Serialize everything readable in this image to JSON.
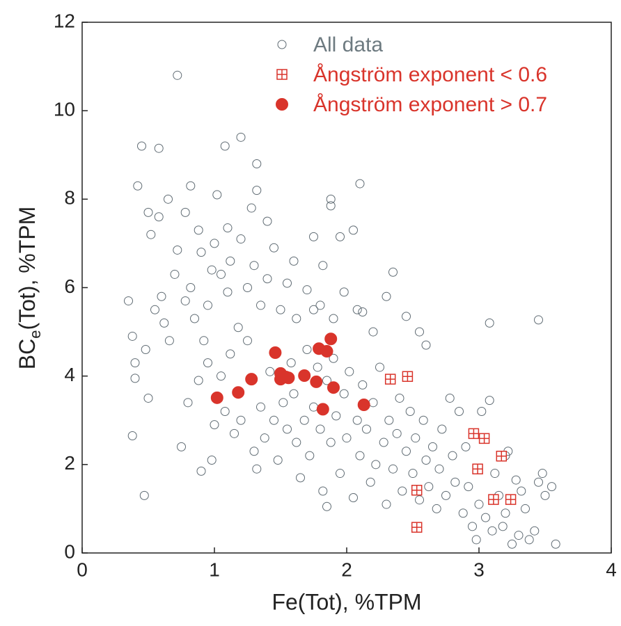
{
  "chart_data": {
    "type": "scatter",
    "xlabel": "Fe(Tot), %TPM",
    "ylabel_parts": [
      "BC",
      "e",
      "(Tot), %TPM"
    ],
    "xlim": [
      0,
      4
    ],
    "ylim": [
      0,
      12
    ],
    "xticks": [
      0,
      1,
      2,
      3,
      4
    ],
    "yticks": [
      0,
      2,
      4,
      6,
      8,
      10,
      12
    ],
    "grid": false,
    "legend": "top",
    "series": [
      {
        "name": "All data",
        "marker": "open-circle",
        "color": "#5f6b73",
        "x": [
          0.72,
          0.45,
          0.58,
          1.08,
          1.2,
          1.32,
          0.42,
          0.65,
          0.82,
          1.02,
          1.32,
          1.88,
          1.88,
          2.1,
          0.5,
          0.58,
          0.78,
          0.52,
          0.88,
          1.1,
          1.2,
          1.28,
          1.4,
          1.75,
          1.95,
          2.05,
          0.35,
          0.38,
          0.4,
          0.4,
          0.38,
          0.47,
          0.5,
          0.48,
          0.55,
          0.6,
          0.62,
          0.66,
          0.7,
          0.72,
          0.78,
          0.82,
          0.85,
          0.9,
          0.92,
          0.95,
          0.98,
          1.0,
          1.05,
          1.1,
          1.12,
          1.18,
          1.25,
          1.3,
          1.35,
          1.4,
          1.45,
          1.5,
          1.55,
          1.6,
          1.62,
          1.7,
          1.75,
          1.8,
          1.82,
          1.9,
          1.98,
          2.08,
          2.12,
          2.2,
          2.3,
          2.35,
          2.45,
          2.55,
          2.6,
          3.08,
          3.45,
          0.8,
          0.75,
          0.9,
          0.98,
          1.0,
          1.05,
          0.88,
          0.95,
          1.08,
          1.12,
          1.15,
          1.2,
          1.25,
          1.3,
          1.32,
          1.35,
          1.38,
          1.42,
          1.45,
          1.48,
          1.52,
          1.55,
          1.58,
          1.6,
          1.62,
          1.65,
          1.68,
          1.7,
          1.72,
          1.75,
          1.78,
          1.8,
          1.82,
          1.85,
          1.85,
          1.88,
          1.9,
          1.92,
          1.95,
          1.98,
          2.0,
          2.02,
          2.05,
          2.08,
          2.1,
          2.12,
          2.15,
          2.18,
          2.2,
          2.22,
          2.25,
          2.28,
          2.3,
          2.32,
          2.35,
          2.38,
          2.4,
          2.42,
          2.45,
          2.48,
          2.5,
          2.52,
          2.55,
          2.58,
          2.6,
          2.62,
          2.65,
          2.68,
          2.7,
          2.72,
          2.75,
          2.78,
          2.8,
          2.82,
          2.85,
          2.88,
          2.9,
          2.92,
          2.95,
          2.98,
          3.0,
          3.02,
          3.05,
          3.08,
          3.1,
          3.12,
          3.15,
          3.18,
          3.2,
          3.22,
          3.25,
          3.3,
          3.32,
          3.38,
          3.42,
          3.45,
          3.48,
          3.5,
          3.55,
          3.58,
          3.2,
          3.35,
          3.28
        ],
        "values": [
          10.8,
          9.2,
          9.15,
          9.2,
          9.4,
          8.8,
          8.3,
          8.0,
          8.3,
          8.1,
          8.2,
          8.0,
          7.85,
          8.35,
          7.7,
          7.6,
          7.7,
          7.2,
          7.3,
          7.35,
          7.1,
          7.8,
          7.5,
          7.15,
          7.15,
          7.3,
          5.7,
          4.9,
          4.3,
          3.95,
          2.65,
          1.3,
          3.5,
          4.6,
          5.5,
          5.8,
          5.2,
          4.8,
          6.3,
          6.85,
          5.7,
          6.0,
          5.3,
          6.8,
          4.8,
          5.6,
          6.4,
          7.0,
          6.3,
          5.9,
          6.6,
          5.1,
          6.0,
          6.5,
          5.6,
          6.2,
          6.9,
          5.5,
          6.1,
          6.6,
          5.3,
          5.95,
          5.5,
          5.6,
          6.5,
          5.3,
          5.9,
          5.5,
          5.45,
          5.0,
          5.8,
          6.35,
          5.35,
          5.0,
          4.7,
          5.2,
          5.27,
          3.4,
          2.4,
          1.85,
          2.1,
          2.9,
          4.0,
          3.9,
          4.3,
          3.2,
          4.5,
          2.7,
          3.0,
          4.8,
          2.3,
          1.9,
          3.3,
          2.6,
          4.1,
          3.0,
          2.1,
          3.4,
          2.8,
          4.3,
          3.6,
          2.5,
          1.7,
          3.0,
          4.6,
          2.2,
          3.3,
          4.2,
          2.8,
          1.4,
          3.9,
          1.05,
          2.5,
          4.4,
          3.1,
          1.8,
          3.6,
          2.6,
          4.1,
          1.25,
          3.0,
          2.2,
          3.8,
          2.8,
          1.6,
          3.4,
          2.0,
          4.2,
          2.5,
          1.1,
          3.0,
          1.9,
          2.7,
          3.5,
          1.4,
          2.3,
          3.2,
          1.8,
          2.6,
          1.2,
          3.0,
          2.1,
          1.5,
          2.4,
          1.0,
          1.9,
          2.8,
          1.3,
          3.5,
          2.2,
          1.6,
          3.2,
          0.9,
          2.4,
          1.5,
          0.6,
          0.3,
          1.1,
          3.2,
          0.8,
          3.45,
          0.5,
          1.8,
          1.3,
          0.6,
          0.9,
          2.3,
          0.2,
          0.4,
          1.4,
          0.3,
          0.5,
          1.6,
          1.8,
          1.3,
          1.5,
          0.2,
          2.2,
          1.0,
          1.65
        ]
      },
      {
        "name": "Ångström exponent < 0.6",
        "marker": "square-plus",
        "color": "#d9342b",
        "x": [
          2.33,
          2.46,
          2.96,
          3.04,
          3.17,
          2.99,
          2.53,
          3.11,
          3.24,
          2.53
        ],
        "values": [
          3.93,
          3.99,
          2.7,
          2.59,
          2.19,
          1.9,
          1.42,
          1.21,
          1.21,
          0.58
        ]
      },
      {
        "name": "Ångström exponent > 0.7",
        "marker": "filled-circle",
        "color": "#d9342b",
        "x": [
          1.02,
          1.18,
          1.28,
          1.46,
          1.5,
          1.5,
          1.54,
          1.56,
          1.68,
          1.77,
          1.79,
          1.85,
          1.88,
          1.9,
          1.82,
          2.13
        ],
        "values": [
          3.51,
          3.63,
          3.93,
          4.53,
          3.93,
          4.06,
          3.98,
          3.96,
          4.01,
          3.87,
          4.62,
          4.56,
          4.84,
          3.74,
          3.25,
          3.35
        ]
      }
    ]
  }
}
